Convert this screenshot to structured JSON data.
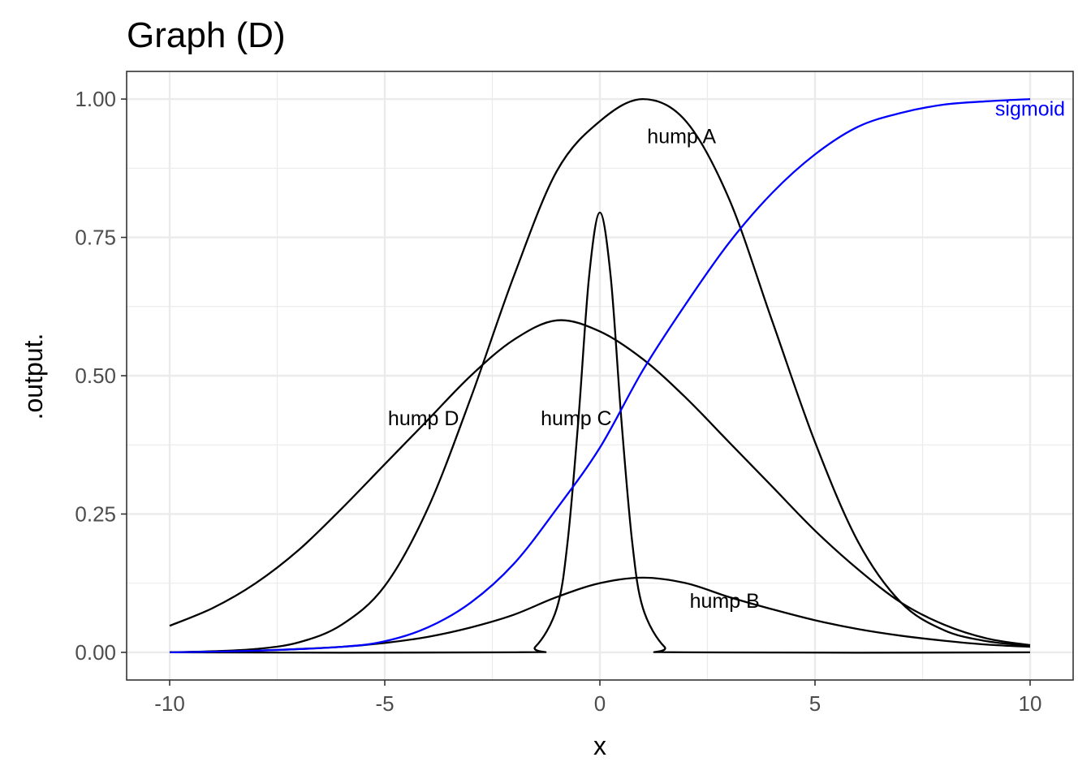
{
  "chart_data": {
    "type": "line",
    "title": "Graph (D)",
    "xlabel": "x",
    "ylabel": ".output.",
    "xlim": [
      -11,
      11
    ],
    "ylim": [
      -0.05,
      1.05
    ],
    "x_ticks": [
      -10,
      -5,
      0,
      5,
      10
    ],
    "x_tick_labels": [
      "-10",
      "-5",
      "0",
      "5",
      "10"
    ],
    "y_ticks": [
      0,
      0.25,
      0.5,
      0.75,
      1.0
    ],
    "y_tick_labels": [
      "0.00",
      "0.25",
      "0.50",
      "0.75",
      "1.00"
    ],
    "grid": true,
    "colors": {
      "default": "#000000",
      "sigmoid": "#0000ff",
      "grid": "#ebebeb",
      "panel_border": "#333333"
    },
    "series": [
      {
        "name": "hump A",
        "color": "#000000",
        "x": [
          -10,
          -9,
          -8,
          -7,
          -6,
          -5,
          -4,
          -3,
          -2,
          -1,
          0,
          1,
          2,
          3,
          4,
          5,
          6,
          7,
          8,
          9,
          10
        ],
        "y": [
          0.0,
          0.002,
          0.006,
          0.018,
          0.05,
          0.12,
          0.26,
          0.46,
          0.68,
          0.87,
          0.96,
          1.0,
          0.96,
          0.82,
          0.6,
          0.38,
          0.2,
          0.09,
          0.04,
          0.02,
          0.012
        ],
        "label": {
          "text": "hump A",
          "x": 1.9,
          "y": 0.93
        }
      },
      {
        "name": "hump B",
        "color": "#000000",
        "x": [
          -10,
          -8,
          -6,
          -5,
          -4,
          -3,
          -2,
          -1,
          0,
          1,
          2,
          3,
          4,
          5,
          6,
          7,
          8,
          9,
          10
        ],
        "y": [
          0.0,
          0.003,
          0.01,
          0.017,
          0.028,
          0.045,
          0.068,
          0.1,
          0.125,
          0.135,
          0.125,
          0.1,
          0.078,
          0.058,
          0.042,
          0.03,
          0.021,
          0.014,
          0.01
        ],
        "label": {
          "text": "hump B",
          "x": 2.9,
          "y": 0.09
        }
      },
      {
        "name": "hump C",
        "color": "#000000",
        "x": [
          -10,
          -2,
          -1.5,
          -1.0,
          -0.75,
          -0.5,
          -0.25,
          0,
          0.25,
          0.5,
          0.75,
          1.0,
          1.5,
          2,
          10
        ],
        "y": [
          0.0,
          0.0,
          0.01,
          0.08,
          0.2,
          0.42,
          0.68,
          0.795,
          0.68,
          0.42,
          0.2,
          0.08,
          0.01,
          0.0,
          0.0
        ],
        "label": {
          "text": "hump C",
          "x": -0.55,
          "y": 0.42
        }
      },
      {
        "name": "hump D",
        "color": "#000000",
        "x": [
          -10,
          -9,
          -8,
          -7,
          -6,
          -5,
          -4,
          -3,
          -2,
          -1,
          0,
          1,
          2,
          3,
          4,
          5,
          6,
          7,
          8,
          9,
          10
        ],
        "y": [
          0.048,
          0.08,
          0.125,
          0.185,
          0.26,
          0.34,
          0.42,
          0.5,
          0.565,
          0.6,
          0.58,
          0.53,
          0.46,
          0.38,
          0.3,
          0.22,
          0.15,
          0.09,
          0.05,
          0.025,
          0.013
        ],
        "label": {
          "text": "hump D",
          "x": -4.1,
          "y": 0.42
        }
      },
      {
        "name": "sigmoid",
        "color": "#0000ff",
        "x": [
          -10,
          -8,
          -6,
          -5,
          -4,
          -3,
          -2,
          -1,
          0,
          1,
          2,
          3,
          4,
          5,
          6,
          7,
          8,
          9,
          10
        ],
        "y": [
          0.0,
          0.003,
          0.01,
          0.02,
          0.045,
          0.09,
          0.16,
          0.26,
          0.37,
          0.51,
          0.63,
          0.74,
          0.83,
          0.9,
          0.95,
          0.975,
          0.99,
          0.996,
          1.0
        ],
        "label": {
          "text": "sigmoid",
          "x": 10.0,
          "y": 0.98
        }
      }
    ]
  }
}
